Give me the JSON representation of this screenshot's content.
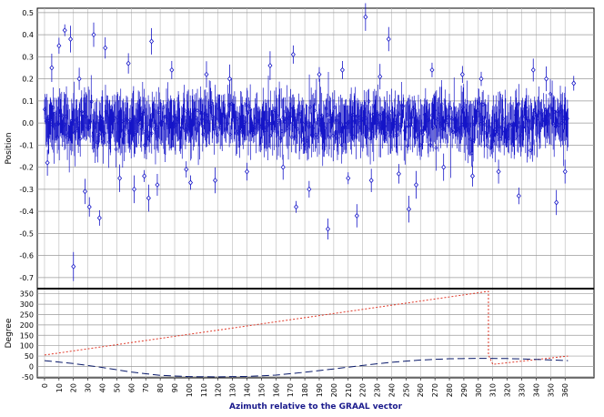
{
  "chart_data": [
    {
      "type": "scatter",
      "ylabel": "Position",
      "ylim": [
        -0.75,
        0.52
      ],
      "xlim": [
        -5,
        380
      ],
      "yticks": [
        0.5,
        0.4,
        0.3,
        0.2,
        0.1,
        0.0,
        -0.1,
        -0.2,
        -0.3,
        -0.4,
        -0.5,
        -0.6,
        -0.7
      ],
      "ytick_labels": [
        "0.5",
        "0.4",
        "0.3",
        "0.2",
        "0.1",
        "0.0",
        "-0.1",
        "-0.2",
        "-0.3",
        "-0.4",
        "-0.5",
        "-0.6",
        "-0.7"
      ],
      "grid": true,
      "series": [
        {
          "color": "#1515c8",
          "marker": "diamond",
          "error_bars": true,
          "band": [
            -0.1,
            0.1
          ],
          "outliers": [
            {
              "x": 2,
              "y": -0.18
            },
            {
              "x": 5,
              "y": 0.25
            },
            {
              "x": 10,
              "y": 0.35
            },
            {
              "x": 14,
              "y": 0.42
            },
            {
              "x": 18,
              "y": 0.38
            },
            {
              "x": 20,
              "y": -0.65
            },
            {
              "x": 24,
              "y": 0.2
            },
            {
              "x": 28,
              "y": -0.31
            },
            {
              "x": 31,
              "y": -0.38
            },
            {
              "x": 34,
              "y": 0.4
            },
            {
              "x": 38,
              "y": -0.43
            },
            {
              "x": 42,
              "y": 0.34
            },
            {
              "x": 52,
              "y": -0.25
            },
            {
              "x": 58,
              "y": 0.27
            },
            {
              "x": 62,
              "y": -0.3
            },
            {
              "x": 69,
              "y": -0.24
            },
            {
              "x": 72,
              "y": -0.34
            },
            {
              "x": 74,
              "y": 0.37
            },
            {
              "x": 78,
              "y": -0.28
            },
            {
              "x": 88,
              "y": 0.24
            },
            {
              "x": 98,
              "y": -0.21
            },
            {
              "x": 101,
              "y": -0.27
            },
            {
              "x": 112,
              "y": 0.22
            },
            {
              "x": 118,
              "y": -0.26
            },
            {
              "x": 128,
              "y": 0.2
            },
            {
              "x": 140,
              "y": -0.22
            },
            {
              "x": 156,
              "y": 0.26
            },
            {
              "x": 165,
              "y": -0.2
            },
            {
              "x": 172,
              "y": 0.31
            },
            {
              "x": 174,
              "y": -0.38
            },
            {
              "x": 183,
              "y": -0.3
            },
            {
              "x": 190,
              "y": 0.22
            },
            {
              "x": 196,
              "y": -0.48
            },
            {
              "x": 206,
              "y": 0.24
            },
            {
              "x": 210,
              "y": -0.25
            },
            {
              "x": 216,
              "y": -0.42
            },
            {
              "x": 222,
              "y": 0.48
            },
            {
              "x": 226,
              "y": -0.26
            },
            {
              "x": 232,
              "y": 0.21
            },
            {
              "x": 238,
              "y": 0.38
            },
            {
              "x": 245,
              "y": -0.23
            },
            {
              "x": 252,
              "y": -0.39
            },
            {
              "x": 257,
              "y": -0.28
            },
            {
              "x": 268,
              "y": 0.24
            },
            {
              "x": 276,
              "y": -0.2
            },
            {
              "x": 289,
              "y": 0.22
            },
            {
              "x": 296,
              "y": -0.24
            },
            {
              "x": 302,
              "y": 0.2
            },
            {
              "x": 314,
              "y": -0.22
            },
            {
              "x": 328,
              "y": -0.33
            },
            {
              "x": 338,
              "y": 0.24
            },
            {
              "x": 347,
              "y": 0.2
            },
            {
              "x": 354,
              "y": -0.36
            },
            {
              "x": 360,
              "y": -0.22
            },
            {
              "x": 366,
              "y": 0.18
            }
          ]
        }
      ]
    },
    {
      "type": "line",
      "ylabel": "Degree",
      "xlabel": "Azimuth relative to the GRAAL vector",
      "ylim": [
        -55,
        375
      ],
      "xlim": [
        -5,
        380
      ],
      "yticks": [
        350,
        300,
        250,
        200,
        150,
        100,
        50,
        0,
        -50
      ],
      "ytick_labels": [
        "350",
        "300",
        "250",
        "200",
        "150",
        "100",
        "50",
        "0",
        "-50"
      ],
      "xticks": [
        0,
        10,
        20,
        30,
        40,
        50,
        60,
        70,
        80,
        90,
        100,
        110,
        120,
        130,
        140,
        150,
        160,
        170,
        180,
        190,
        200,
        210,
        220,
        230,
        240,
        250,
        260,
        270,
        280,
        290,
        300,
        310,
        320,
        330,
        340,
        350,
        360
      ],
      "xtick_labels": [
        "0",
        "10",
        "20",
        "30",
        "40",
        "50",
        "60",
        "70",
        "80",
        "90",
        "100",
        "110",
        "120",
        "130",
        "140",
        "150",
        "160",
        "170",
        "180",
        "190",
        "200",
        "210",
        "220",
        "230",
        "240",
        "250",
        "260",
        "270",
        "280",
        "290",
        "300",
        "310",
        "320",
        "330",
        "340",
        "350",
        "360"
      ],
      "grid": true,
      "series": [
        {
          "color": "#e03a2a",
          "dash": "dotted",
          "x": [
            0,
            307,
            307,
            310,
            362
          ],
          "y": [
            55,
            362,
            55,
            10,
            50
          ]
        },
        {
          "color": "#0a1a6a",
          "dash": "dashed",
          "x": [
            0,
            20,
            40,
            60,
            80,
            100,
            120,
            140,
            160,
            180,
            200,
            220,
            240,
            260,
            280,
            300,
            320,
            340,
            362
          ],
          "y": [
            28,
            14,
            -5,
            -27,
            -43,
            -49,
            -50,
            -48,
            -42,
            -28,
            -12,
            5,
            20,
            31,
            37,
            39,
            38,
            34,
            28
          ]
        }
      ]
    }
  ]
}
